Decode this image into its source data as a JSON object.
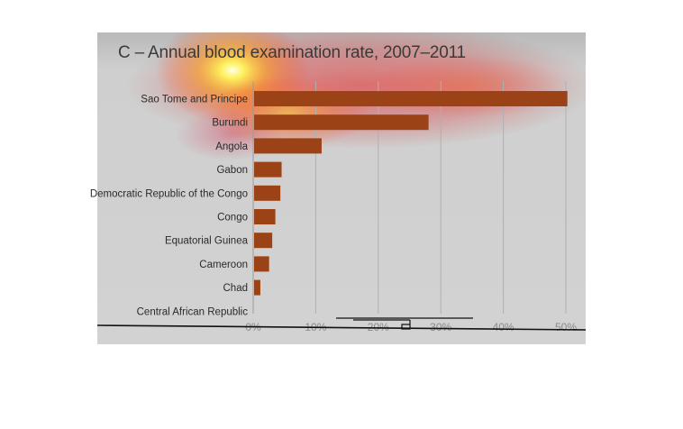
{
  "chart_data": {
    "type": "bar",
    "orientation": "horizontal",
    "title": "C – Annual blood examination rate, 2007–2011",
    "categories": [
      "Sao Tome and Principe",
      "Burundi",
      "Angola",
      "Gabon",
      "Democratic Republic of the Congo",
      "Congo",
      "Equatorial Guinea",
      "Cameroon",
      "Chad",
      "Central African Republic"
    ],
    "values": [
      50.1,
      27.9,
      10.8,
      4.4,
      4.2,
      3.4,
      2.9,
      2.4,
      1.0,
      0
    ],
    "xlabel": "",
    "ylabel": "",
    "xlim": [
      0,
      50
    ],
    "x_ticks": [
      0,
      10,
      20,
      30,
      40,
      50
    ],
    "x_tick_labels": [
      "0%",
      "10%",
      "20%",
      "30%",
      "40%",
      "50%"
    ],
    "grid": true,
    "bar_color": "#9b4316",
    "overlay": "heatmap"
  }
}
